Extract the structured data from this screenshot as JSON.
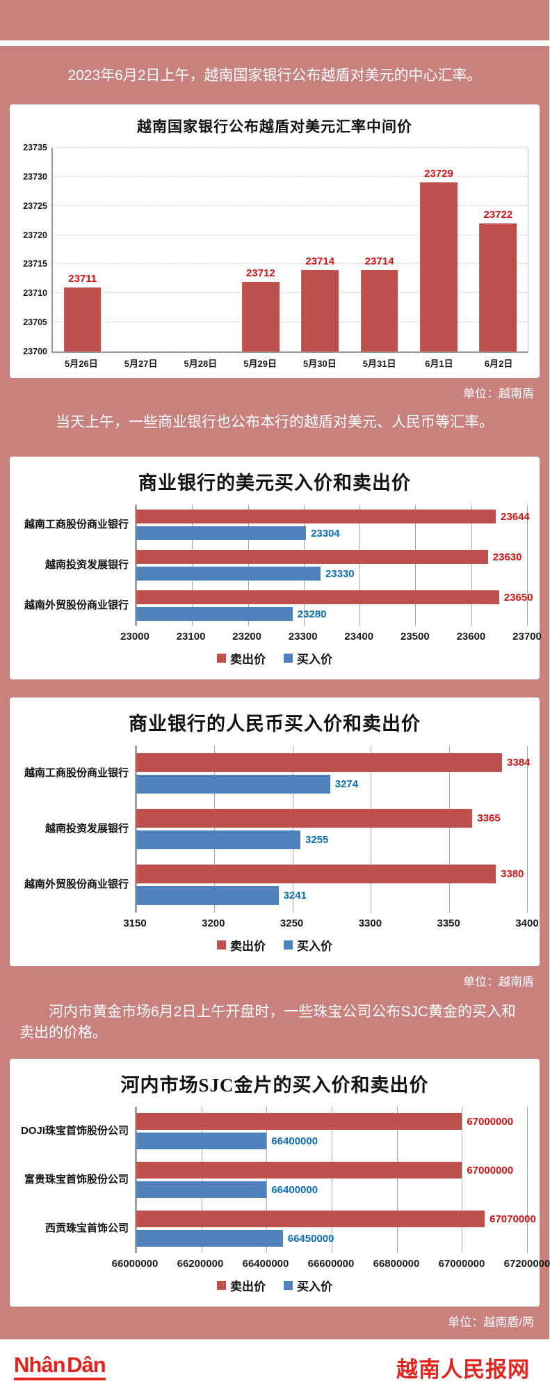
{
  "colors": {
    "background": "#c9817e",
    "panel": "#ffffff",
    "sell_bar": "#c0504d",
    "buy_bar": "#4f81bd",
    "sell_label": "#d21414",
    "buy_label": "#0a6ebd",
    "footer_red": "#e3231c"
  },
  "header": {
    "intro": "2023年6月2日上午，越南国家银行公布越盾对美元的中心汇率。"
  },
  "sections": {
    "intro_banks": "当天上午，一些商业银行也公布本行的越盾对美元、人民币等汇率。",
    "intro_gold": "河内市黄金市场6月2日上午开盘时，一些珠宝公司公布SJC黄金的买入和卖出的价格。",
    "unit_vnd_1": "单位：越南盾",
    "unit_vnd_2": "单位：越南盾",
    "unit_gold": "单位：越南盾/两"
  },
  "footer": {
    "logo_text": "Nhân Dân",
    "site_name": "越南人民报网"
  },
  "chart_data": [
    {
      "type": "bar",
      "title": "越南国家银行公布越盾对美元汇率中间价",
      "categories": [
        "5月26日",
        "5月27日",
        "5月28日",
        "5月29日",
        "5月30日",
        "5月31日",
        "6月1日",
        "6月2日"
      ],
      "values": [
        23711,
        null,
        null,
        23712,
        23714,
        23714,
        23729,
        23722
      ],
      "ylim": [
        23700,
        23735
      ],
      "yticks": [
        23700,
        23705,
        23710,
        23715,
        23720,
        23725,
        23730,
        23735
      ],
      "grid": true,
      "unit": "越南盾"
    },
    {
      "type": "bar-horizontal",
      "title": "商业银行的美元买入价和卖出价",
      "categories": [
        "越南工商股份商业银行",
        "越南投资发展银行",
        "越南外贸股份商业银行"
      ],
      "series": [
        {
          "name": "卖出价",
          "values": [
            23644,
            23630,
            23650
          ]
        },
        {
          "name": "买入价",
          "values": [
            23304,
            23330,
            23280
          ]
        }
      ],
      "xlim": [
        23000,
        23700
      ],
      "xticks": [
        23000,
        23100,
        23200,
        23300,
        23400,
        23500,
        23600,
        23700
      ],
      "legend_position": "bottom",
      "grid": true
    },
    {
      "type": "bar-horizontal",
      "title": "商业银行的人民币买入价和卖出价",
      "categories": [
        "越南工商股份商业银行",
        "越南投资发展银行",
        "越南外贸股份商业银行"
      ],
      "series": [
        {
          "name": "卖出价",
          "values": [
            3384,
            3365,
            3380
          ]
        },
        {
          "name": "买入价",
          "values": [
            3274,
            3255,
            3241
          ]
        }
      ],
      "xlim": [
        3150,
        3400
      ],
      "xticks": [
        3150,
        3200,
        3250,
        3300,
        3350,
        3400
      ],
      "legend_position": "bottom",
      "grid": true,
      "unit": "越南盾"
    },
    {
      "type": "bar-horizontal",
      "title": "河内市场SJC金片的买入价和卖出价",
      "categories": [
        "DOJI珠宝首饰股份公司",
        "富贵珠宝首饰股份公司",
        "西贡珠宝首饰公司"
      ],
      "series": [
        {
          "name": "卖出价",
          "values": [
            67000000,
            67000000,
            67070000
          ]
        },
        {
          "name": "买入价",
          "values": [
            66400000,
            66400000,
            66450000
          ]
        }
      ],
      "xlim": [
        66000000,
        67200000
      ],
      "xticks": [
        66000000,
        66200000,
        66400000,
        66600000,
        66800000,
        67000000,
        67200000
      ],
      "legend_position": "bottom",
      "grid": true,
      "unit": "越南盾/两"
    }
  ]
}
